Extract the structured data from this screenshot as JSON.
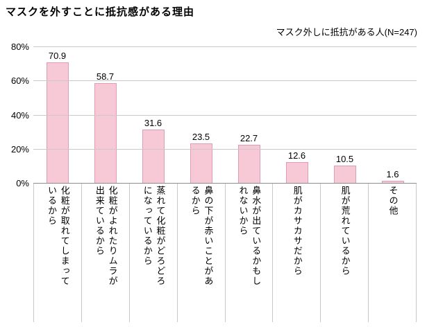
{
  "title": "マスクを外すことに抵抗感がある理由",
  "subtitle": "マスク外しに抵抗がある人(N=247)",
  "chart_data": {
    "type": "bar",
    "categories": [
      "化粧が取れてしまっているから",
      "化粧がよれたりムラが出来ているから",
      "蒸れて化粧がどろどろになっているから",
      "鼻の下が赤いことがあるから",
      "鼻水が出ているかもしれないから",
      "肌がカサカサだから",
      "肌が荒れているから",
      "その他"
    ],
    "values": [
      70.9,
      58.7,
      31.6,
      23.5,
      22.7,
      12.6,
      10.5,
      1.6
    ],
    "title": "マスクを外すことに抵抗感がある理由",
    "subtitle": "マスク外しに抵抗がある人(N=247)",
    "xlabel": "",
    "ylabel": "",
    "ylim": [
      0,
      80
    ],
    "ytick_labels": [
      "0%",
      "20%",
      "40%",
      "60%",
      "80%"
    ],
    "grid": true,
    "legend": "none",
    "colors": {
      "bar_fill": "#f7c9d6",
      "bar_border": "#df9cb2",
      "gridline": "#c9c9c9",
      "axis_line": "#8c8c8c",
      "text": "#000000"
    }
  }
}
